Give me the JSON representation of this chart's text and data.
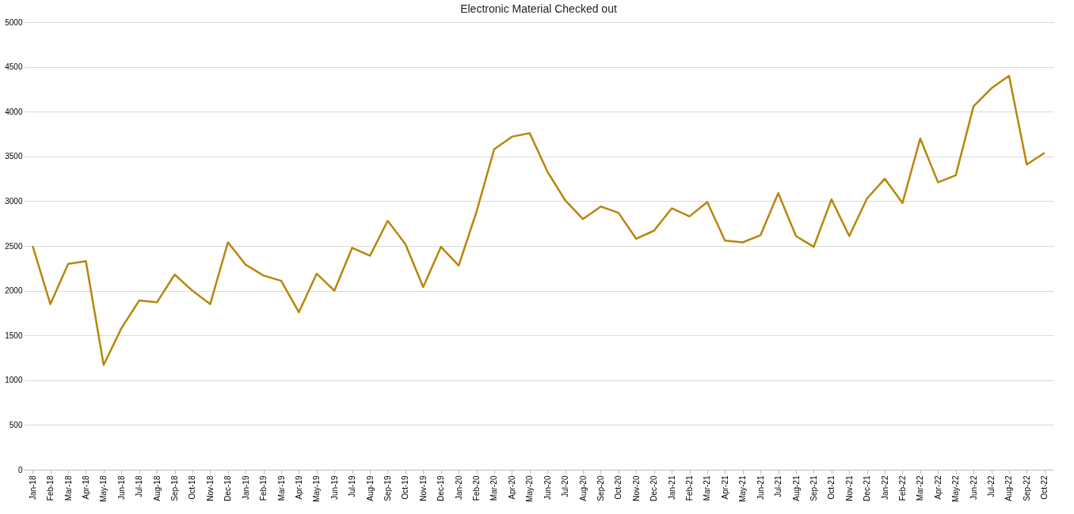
{
  "chart_data": {
    "type": "line",
    "title": "Electronic Material Checked out",
    "categories": [
      "Jan-18",
      "Feb-18",
      "Mar-18",
      "Apr-18",
      "May-18",
      "Jun-18",
      "Jul-18",
      "Aug-18",
      "Sep-18",
      "Oct-18",
      "Nov-18",
      "Dec-18",
      "Jan-19",
      "Feb-19",
      "Mar-19",
      "Apr-19",
      "May-19",
      "Jun-19",
      "Jul-19",
      "Aug-19",
      "Sep-19",
      "Oct-19",
      "Nov-19",
      "Dec-19",
      "Jan-20",
      "Feb-20",
      "Mar-20",
      "Apr-20",
      "May-20",
      "Jun-20",
      "Jul-20",
      "Aug-20",
      "Sep-20",
      "Oct-20",
      "Nov-20",
      "Dec-20",
      "Jan-21",
      "Feb-21",
      "Mar-21",
      "Apr-21",
      "May-21",
      "Jun-21",
      "Jul-21",
      "Aug-21",
      "Sep-21",
      "Oct-21",
      "Nov-21",
      "Dec-21",
      "Jan-22",
      "Feb-22",
      "Mar-22",
      "Apr-22",
      "May-22",
      "Jun-22",
      "Jul-22",
      "Aug-22",
      "Sep-22",
      "Oct-22"
    ],
    "series": [
      {
        "color": "#b8860b",
        "values": [
          2500,
          1850,
          2300,
          2330,
          1170,
          1580,
          1890,
          1870,
          2180,
          2000,
          1850,
          2540,
          2290,
          2170,
          2110,
          1760,
          2190,
          2000,
          2480,
          2390,
          2780,
          2520,
          2040,
          2490,
          2280,
          2880,
          3580,
          3720,
          3760,
          3330,
          3010,
          2800,
          2940,
          2870,
          2580,
          2670,
          2920,
          2830,
          2990,
          2560,
          2540,
          2620,
          3090,
          2610,
          2490,
          3020,
          2610,
          3030,
          3250,
          2980,
          3700,
          3210,
          3290,
          4060,
          4260,
          4400,
          3410,
          3540
        ]
      }
    ],
    "ylim": [
      0,
      5000
    ],
    "yticks": [
      0,
      500,
      1000,
      1500,
      2000,
      2500,
      3000,
      3500,
      4000,
      4500,
      5000
    ],
    "grid": "y",
    "marker": "none",
    "line_style": "solid"
  }
}
